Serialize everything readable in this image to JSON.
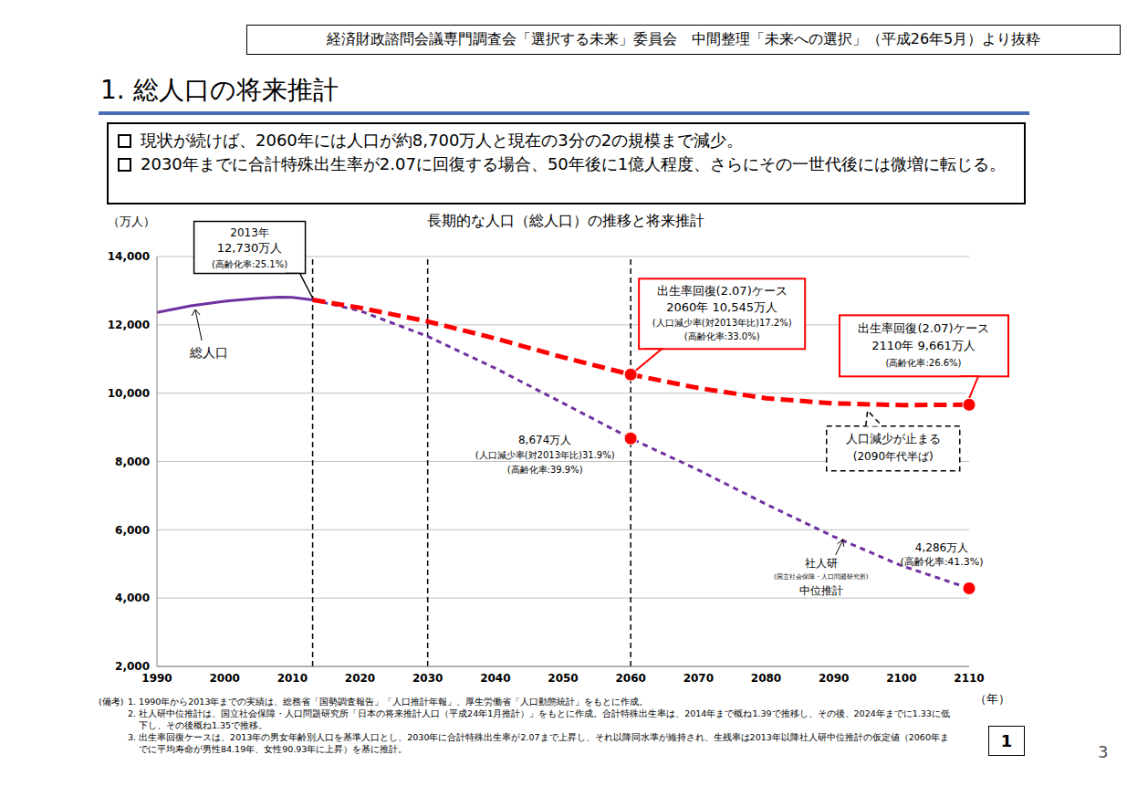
{
  "header": "経済財政諮問会議専門調査会「選択する未来」委員会　中間整理「未来への選択」（平成26年5月）より抜粋",
  "title": "1. 総人口の将来推計",
  "bullets": [
    "現状が続けば、2060年には人口が約8,700万人と現在の3分の2の規模まで減少。",
    "2030年までに合計特殊出生率が2.07に回復する場合、50年後に1億人程度、さらにその一世代後には微増に転じる。"
  ],
  "notes_label": "(備考)",
  "notes": [
    "1. 1990年から2013年までの実績は、総務省「国勢調査報告」「人口推計年報」、厚生労働省「人口動態統計」をもとに作成。",
    "2. 社人研中位推計は、国立社会保障・人口問題研究所「日本の将来推計人口（平成24年1月推計）」をもとに作成。合計特殊出生率は、2014年まで概ね1.39で推移し、その後、2024年までに1.33に低下し、その後概ね1.35で推移。",
    "3. 出生率回復ケースは、2013年の男女年齢別人口を基準人口とし、2030年に合計特殊出生率が2.07まで上昇し、それ以降同水準が維持され、生残率は2013年以降社人研中位推計の仮定値（2060年までに平均寿命が男性84.19年、女性90.93年に上昇）を基に推計。"
  ],
  "slide_number": "1",
  "page_number": "3",
  "chart_data": {
    "type": "line",
    "title": "長期的な人口（総人口）の推移と将来推計",
    "y_label": "（万人）",
    "x_label": "（年）",
    "x": [
      1990,
      1995,
      2000,
      2005,
      2008,
      2010,
      2013,
      2020,
      2030,
      2040,
      2050,
      2060,
      2070,
      2080,
      2090,
      2100,
      2110
    ],
    "xlim": [
      1990,
      2110
    ],
    "xticks": [
      1990,
      2000,
      2010,
      2020,
      2030,
      2040,
      2050,
      2060,
      2070,
      2080,
      2090,
      2100,
      2110
    ],
    "ylim": [
      2000,
      14000
    ],
    "yticks": [
      {
        "value": 2000,
        "label": "2,000"
      },
      {
        "value": 4000,
        "label": "4,000"
      },
      {
        "value": 6000,
        "label": "6,000"
      },
      {
        "value": 8000,
        "label": "8,000"
      },
      {
        "value": 10000,
        "label": "10,000"
      },
      {
        "value": 12000,
        "label": "12,000"
      },
      {
        "value": 14000,
        "label": "14,000"
      }
    ],
    "grid": true,
    "series": [
      {
        "name": "総人口",
        "color": "#7030a0",
        "line_style": "solid",
        "values": [
          12361,
          12557,
          12693,
          12777,
          12808,
          12806,
          12730,
          null,
          null,
          null,
          null,
          null,
          null,
          null,
          null,
          null,
          null
        ]
      },
      {
        "name": "社人研",
        "name_lines": [
          "(国立社会保障・人口問題研究所)",
          "中位推計"
        ],
        "color": "#7030a0",
        "line_style": "dashed",
        "values": [
          null,
          null,
          null,
          null,
          null,
          null,
          12730,
          12410,
          11662,
          10728,
          9708,
          8674,
          7750,
          6750,
          5800,
          4950,
          4286
        ]
      },
      {
        "name": "出生率回復(2.07)ケース",
        "color": "#ff0000",
        "line_style": "dashed",
        "values": [
          null,
          null,
          null,
          null,
          null,
          null,
          12730,
          12500,
          12100,
          11600,
          11050,
          10545,
          10150,
          9850,
          9700,
          9650,
          9661
        ]
      }
    ],
    "reference_lines_x": [
      2013,
      2030,
      2060
    ],
    "annotations": [
      {
        "x": 2013,
        "y": 12730,
        "color": "#000000",
        "line_style": "solid",
        "lines": [
          "2013年",
          "12,730万人",
          "(高齢化率:25.1%)"
        ]
      },
      {
        "series": 2,
        "x": 2060,
        "y": 10545,
        "marker": "circle",
        "color": "#ff0000",
        "line_style": "solid",
        "lines": [
          "2060年 10,545万人",
          "(人口減少率(対2013年比)17.2%)",
          "(高齢化率:33.0%)"
        ]
      },
      {
        "series": 2,
        "x": 2110,
        "y": 9661,
        "marker": "circle",
        "color": "#ff0000",
        "line_style": "solid",
        "lines": [
          "2110年 9,661万人",
          "(高齢化率:26.6%)"
        ]
      },
      {
        "x": 2060,
        "y": 8674,
        "marker": "circle",
        "color": "#ff0000",
        "lines": [
          "8,674万人",
          "(人口減少率(対2013年比)31.9%)",
          "(高齢化率:39.9%)"
        ]
      },
      {
        "x": 2110,
        "y": 4286,
        "marker": "circle",
        "color": "#ff0000",
        "lines": [
          "4,286万人",
          "(高齢化率:41.3%)"
        ]
      },
      {
        "x": 2095,
        "y": 9650,
        "color": "#000000",
        "line_style": "dashed",
        "lines": [
          "人口減少が止まる",
          "(2090年代半ば)"
        ]
      }
    ]
  }
}
